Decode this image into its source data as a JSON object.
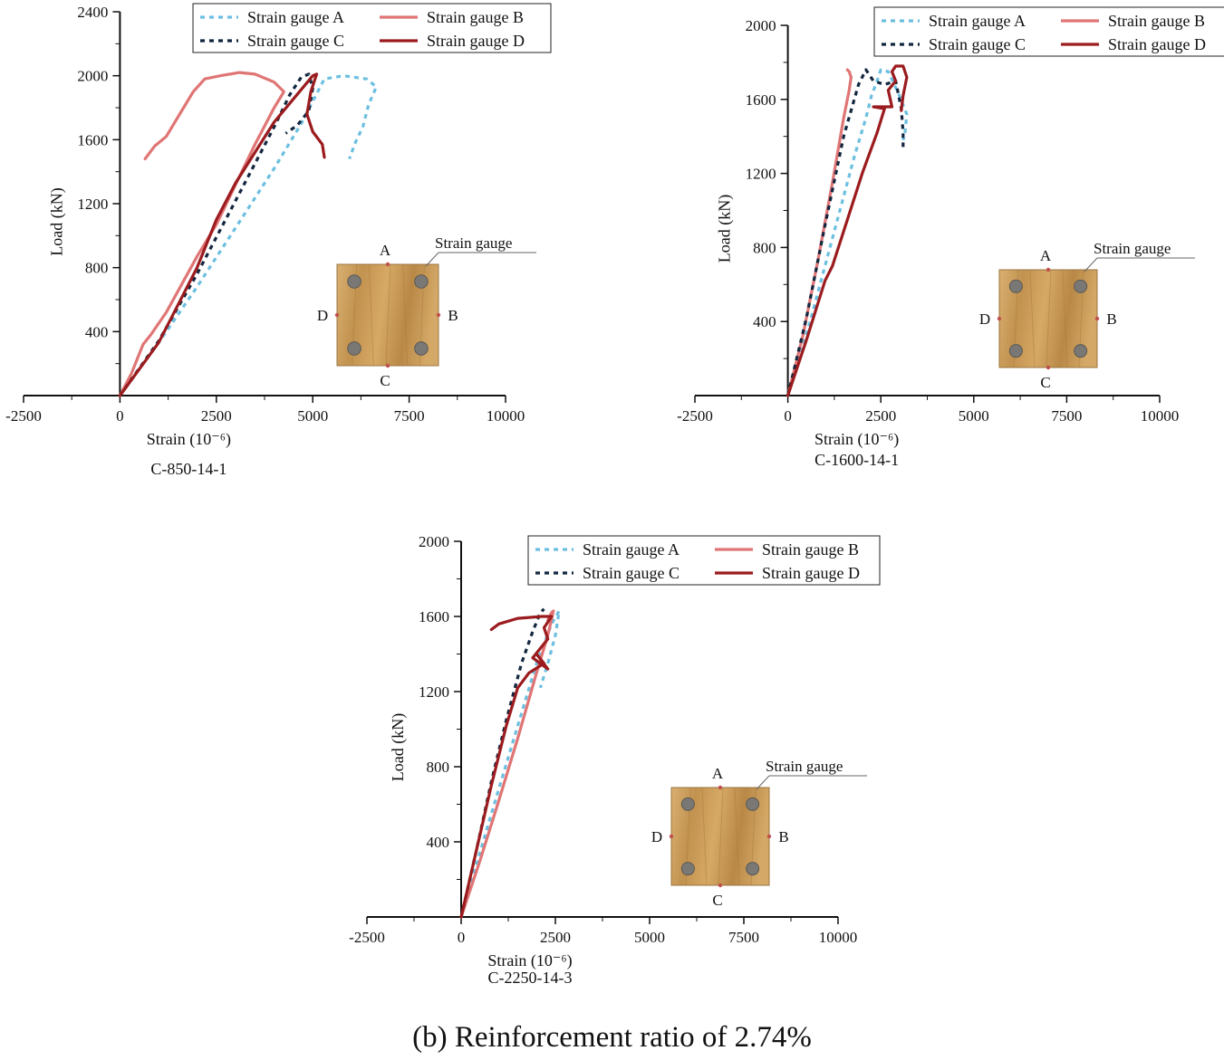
{
  "caption": "(b) Reinforcement ratio of 2.74%",
  "colors": {
    "gauge_a": "#6cbfe0",
    "gauge_b": "#e07575",
    "gauge_c": "#12273f",
    "gauge_d": "#9b1b1e",
    "axis": "#111111",
    "wood": "#c79a55",
    "rebar": "#7a7874"
  },
  "chart_data": [
    {
      "type": "line",
      "title": "C-850-14-1",
      "xlabel": "Strain (10⁻⁶)",
      "ylabel": "Load (kN)",
      "xlim": [
        -2500,
        10000
      ],
      "ylim": [
        0,
        2400
      ],
      "xticks": [
        -2500,
        0,
        2500,
        5000,
        7500,
        10000
      ],
      "yticks": [
        400,
        800,
        1200,
        1600,
        2000,
        2400
      ],
      "legend": "top-right",
      "inset": {
        "label_a": "A",
        "label_b": "B",
        "label_c": "C",
        "label_d": "D",
        "callout": "Strain gauge"
      },
      "series": [
        {
          "name": "Strain gauge A",
          "style": "dashed",
          "color": "#6cbfe0",
          "x": [
            0,
            1000,
            2000,
            3000,
            4000,
            4700,
            5300,
            5800,
            6400,
            6650,
            6450,
            6300,
            6100,
            5950
          ],
          "y": [
            0,
            330,
            680,
            1050,
            1420,
            1700,
            1980,
            2000,
            1980,
            1930,
            1820,
            1680,
            1580,
            1480
          ]
        },
        {
          "name": "Strain gauge B",
          "style": "solid",
          "color": "#e07575",
          "x": [
            0,
            300,
            600,
            800,
            1200,
            2000,
            2500,
            3000,
            3500,
            4000,
            4200,
            4250,
            4000,
            3500,
            3100,
            2600,
            2200,
            1900,
            1600,
            1200,
            900,
            650
          ],
          "y": [
            0,
            140,
            320,
            380,
            520,
            870,
            1070,
            1320,
            1570,
            1800,
            1880,
            1900,
            1960,
            2010,
            2020,
            2000,
            1980,
            1900,
            1780,
            1620,
            1560,
            1480
          ]
        },
        {
          "name": "Strain gauge C",
          "style": "dashed",
          "color": "#12273f",
          "x": [
            0,
            1000,
            2000,
            3000,
            4000,
            4400,
            4700,
            4900,
            5000,
            4900,
            4600,
            4300
          ],
          "y": [
            0,
            340,
            760,
            1220,
            1680,
            1880,
            1990,
            2010,
            1920,
            1780,
            1690,
            1640
          ]
        },
        {
          "name": "Strain gauge D",
          "style": "solid",
          "color": "#9b1b1e",
          "x": [
            0,
            1000,
            2000,
            2500,
            3000,
            4000,
            5000,
            5100,
            4950,
            4850,
            5000,
            5250,
            5300
          ],
          "y": [
            0,
            330,
            800,
            1100,
            1330,
            1710,
            2000,
            2010,
            1900,
            1760,
            1650,
            1570,
            1490
          ]
        }
      ]
    },
    {
      "type": "line",
      "title": "C-1600-14-1",
      "xlabel": "Strain (10⁻⁶)",
      "ylabel": "Load (kN)",
      "xlim": [
        -2500,
        10000
      ],
      "ylim": [
        0,
        2000
      ],
      "xticks": [
        -2500,
        0,
        2500,
        5000,
        7500,
        10000
      ],
      "yticks": [
        400,
        800,
        1200,
        1600,
        2000
      ],
      "legend": "top-right",
      "inset": {
        "label_a": "A",
        "label_b": "B",
        "label_c": "C",
        "label_d": "D",
        "callout": "Strain gauge"
      },
      "series": [
        {
          "name": "Strain gauge A",
          "style": "dashed",
          "color": "#6cbfe0",
          "x": [
            0,
            600,
            1200,
            1800,
            2100,
            2250,
            2400,
            2500,
            2700,
            3000,
            3200,
            3150,
            3100
          ],
          "y": [
            0,
            400,
            850,
            1300,
            1500,
            1620,
            1700,
            1760,
            1750,
            1620,
            1520,
            1420,
            1380
          ]
        },
        {
          "name": "Strain gauge B",
          "style": "solid",
          "color": "#e07575",
          "x": [
            0,
            400,
            800,
            1200,
            1500,
            1650,
            1700,
            1650,
            1600
          ],
          "y": [
            0,
            320,
            720,
            1150,
            1500,
            1650,
            1720,
            1750,
            1760
          ]
        },
        {
          "name": "Strain gauge C",
          "style": "dashed",
          "color": "#12273f",
          "x": [
            0,
            500,
            1000,
            1500,
            1900,
            2100,
            2300,
            2600,
            2900,
            3050,
            3100,
            3100
          ],
          "y": [
            0,
            420,
            920,
            1400,
            1680,
            1760,
            1700,
            1680,
            1700,
            1550,
            1420,
            1340
          ]
        },
        {
          "name": "Strain gauge D",
          "style": "solid",
          "color": "#9b1b1e",
          "x": [
            0,
            500,
            1000,
            1200,
            1600,
            2000,
            2400,
            2600,
            2300,
            2800,
            2700,
            2900,
            2800,
            2900,
            3100,
            3200,
            3100,
            3050
          ],
          "y": [
            0,
            300,
            620,
            700,
            950,
            1200,
            1420,
            1550,
            1560,
            1560,
            1650,
            1700,
            1750,
            1780,
            1780,
            1720,
            1620,
            1540
          ]
        }
      ]
    },
    {
      "type": "line",
      "title": "C-2250-14-3",
      "xlabel": "Strain (10⁻⁶)",
      "ylabel": "Load (kN)",
      "xlim": [
        -2500,
        10000
      ],
      "ylim": [
        0,
        2000
      ],
      "xticks": [
        -2500,
        0,
        2500,
        5000,
        7500,
        10000
      ],
      "yticks": [
        400,
        800,
        1200,
        1600,
        2000
      ],
      "legend": "top-right",
      "inset": {
        "label_a": "A",
        "label_b": "B",
        "label_c": "C",
        "label_d": "D",
        "callout": "Strain gauge"
      },
      "series": [
        {
          "name": "Strain gauge A",
          "style": "dashed",
          "color": "#6cbfe0",
          "x": [
            0,
            700,
            1400,
            2000,
            2400,
            2600,
            2500,
            2300,
            2100
          ],
          "y": [
            0,
            480,
            950,
            1350,
            1560,
            1630,
            1500,
            1350,
            1220
          ]
        },
        {
          "name": "Strain gauge B",
          "style": "solid",
          "color": "#e07575",
          "x": [
            0,
            500,
            1000,
            1500,
            2000,
            2300,
            2450,
            2400,
            2300
          ],
          "y": [
            0,
            300,
            620,
            950,
            1300,
            1500,
            1630,
            1620,
            1580
          ]
        },
        {
          "name": "Strain gauge C",
          "style": "dashed",
          "color": "#12273f",
          "x": [
            0,
            400,
            800,
            1200,
            1600,
            1900,
            2100,
            2200
          ],
          "y": [
            0,
            350,
            720,
            1050,
            1350,
            1520,
            1620,
            1640
          ]
        },
        {
          "name": "Strain gauge D",
          "style": "solid",
          "color": "#9b1b1e",
          "x": [
            0,
            400,
            800,
            1200,
            1500,
            1800,
            2200,
            2000,
            2300,
            1900,
            2300,
            2200,
            2400,
            2150,
            1500,
            1000,
            800
          ],
          "y": [
            0,
            350,
            700,
            1020,
            1220,
            1300,
            1350,
            1400,
            1320,
            1380,
            1480,
            1540,
            1600,
            1600,
            1590,
            1560,
            1530
          ]
        }
      ]
    }
  ]
}
